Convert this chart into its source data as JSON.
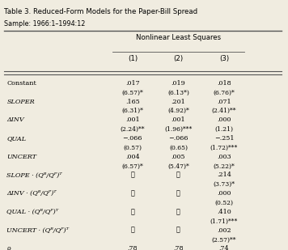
{
  "title": "Table 3. Reduced-Form Models for the Paper-Bill Spread",
  "subtitle": "Sample: 1966:1–1994:12",
  "header_group": "Nonlinear Least Squares",
  "columns": [
    "(1)",
    "(2)",
    "(3)"
  ],
  "rows": [
    {
      "label": "Constant",
      "italic": false,
      "values": [
        ".017",
        ".019",
        ".018"
      ],
      "tstats": [
        "(6.57)*",
        "(6.13*)",
        "(6.76)*"
      ]
    },
    {
      "label": "SLOPER",
      "italic": true,
      "values": [
        ".165",
        ".201",
        ".071"
      ],
      "tstats": [
        "(6.31)*",
        "(4.92)*",
        "(2.41)**"
      ]
    },
    {
      "label": "ΔINV",
      "italic": true,
      "values": [
        ".001",
        ".001",
        ".000"
      ],
      "tstats": [
        "(2.24)**",
        "(1.96)***",
        "(1.21)"
      ]
    },
    {
      "label": "QUAL",
      "italic": true,
      "values": [
        "−.066",
        "−.066",
        "−.251"
      ],
      "tstats": [
        "(0.57)",
        "(0.65)",
        "(1.72)***"
      ]
    },
    {
      "label": "UNCERT",
      "italic": true,
      "values": [
        ".004",
        ".005",
        ".003"
      ],
      "tstats": [
        "(6.57)*",
        "(5.47)*",
        "(5.22)*"
      ]
    },
    {
      "label": "SLOPE · (Q_B/Q_P)^T",
      "italic": true,
      "values": [
        "⋯",
        "⋯",
        ".214"
      ],
      "tstats": [
        "",
        "",
        "(3.73)*"
      ]
    },
    {
      "label": "ΔINV · (Q_B/Q_P)^T",
      "italic": true,
      "values": [
        "⋯",
        "⋯",
        ".000"
      ],
      "tstats": [
        "",
        "",
        "(0.52)"
      ]
    },
    {
      "label": "QUAL · (Q_B/Q_P)^T",
      "italic": true,
      "values": [
        "⋯",
        "⋯",
        ".410"
      ],
      "tstats": [
        "",
        "",
        "(1.71)***"
      ]
    },
    {
      "label": "UNCERT · (Q_B/Q_P)^T",
      "italic": true,
      "values": [
        "⋯",
        "⋯",
        ".002"
      ],
      "tstats": [
        "",
        "",
        "(2.57)**"
      ]
    },
    {
      "label": "ρ",
      "italic": false,
      "values": [
        ".78",
        ".78",
        ".74"
      ],
      "tstats": [
        "",
        "",
        ""
      ]
    }
  ],
  "bg_color": "#f0ece0",
  "text_color": "#000000",
  "line_color": "#555555"
}
